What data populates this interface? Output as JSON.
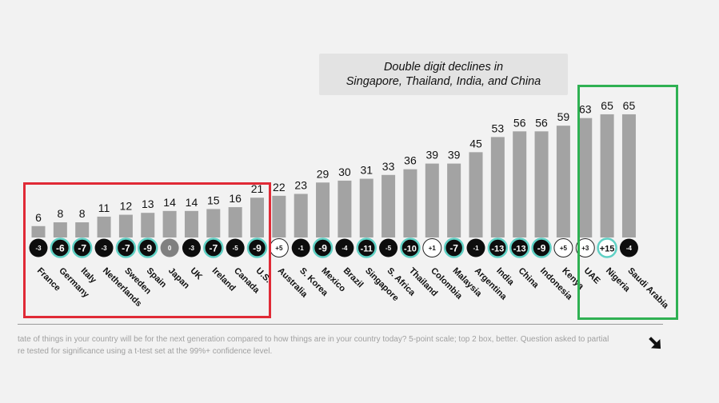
{
  "callout": {
    "line1": "Double digit declines in",
    "line2": "Singapore, Thailand, India, and China"
  },
  "chart_data": {
    "type": "bar",
    "title": "",
    "xlabel": "",
    "ylabel": "",
    "ylim": [
      0,
      100
    ],
    "categories": [
      "France",
      "Germany",
      "Italy",
      "Netherlands",
      "Sweden",
      "Spain",
      "Japan",
      "UK",
      "Ireland",
      "Canada",
      "U.S.",
      "Australia",
      "S. Korea",
      "Mexico",
      "Brazil",
      "Singapore",
      "S. Africa",
      "Thailand",
      "Colombia",
      "Malaysia",
      "Argentina",
      "India",
      "China",
      "Indonesia",
      "Kenya",
      "UAE",
      "Nigeria",
      "Saudi Arabia"
    ],
    "values": [
      6,
      8,
      8,
      11,
      12,
      13,
      14,
      14,
      15,
      16,
      21,
      22,
      23,
      29,
      30,
      31,
      33,
      36,
      39,
      39,
      45,
      53,
      56,
      56,
      59,
      63,
      65,
      65
    ],
    "change": [
      "-3",
      "-6",
      "-7",
      "-3",
      "-7",
      "-9",
      "0",
      "-3",
      "-7",
      "-5",
      "-9",
      "+5",
      "-1",
      "-9",
      "-4",
      "-11",
      "-5",
      "-10",
      "+1",
      "-7",
      "-1",
      "-13",
      "-13",
      "-9",
      "+5",
      "+3",
      "+15",
      "-4"
    ],
    "change_style": [
      "black",
      "black-sig",
      "black-sig",
      "black",
      "black-sig",
      "black-sig",
      "gray",
      "black",
      "black-sig",
      "black",
      "black-sig",
      "white",
      "black",
      "black-sig",
      "black",
      "black-sig",
      "black",
      "black-sig",
      "white",
      "black-sig",
      "black",
      "black-sig",
      "black-sig",
      "black-sig",
      "white",
      "white",
      "white-sig",
      "black"
    ],
    "colors": {
      "bar": "#a3a3a3",
      "significant_ring": "#5fd0c4",
      "black": "#0d0d0d",
      "gray": "#808080"
    }
  },
  "footnote": {
    "line1": "tate of things in your country will be for the next generation compared to how things are in your country today? 5-point scale; top 2 box, better. Question asked to partial",
    "line2": "re tested for significance using a t-test set at the 99%+ confidence level."
  },
  "nav": {
    "icon": "arrow-right-icon"
  }
}
